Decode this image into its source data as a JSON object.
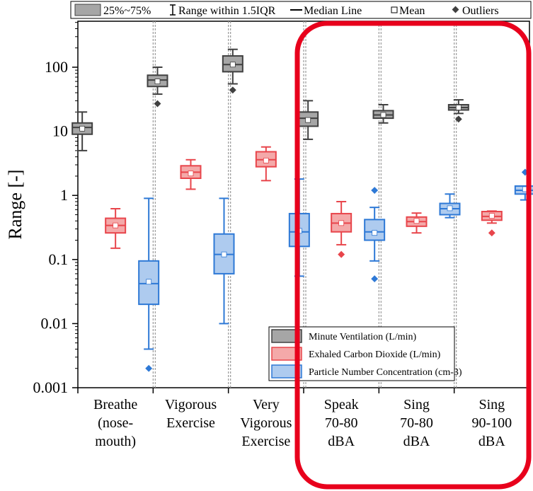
{
  "chart_data": {
    "type": "box",
    "yscale": "log",
    "ylabel": "Range [-]",
    "ylim": [
      0.001,
      500
    ],
    "y_ticks": [
      {
        "value": 100,
        "label": "100"
      },
      {
        "value": 10,
        "label": "10"
      },
      {
        "value": 1,
        "label": "1"
      },
      {
        "value": 0.1,
        "label": "0.1"
      },
      {
        "value": 0.01,
        "label": "0.01"
      },
      {
        "value": 0.001,
        "label": "0.001"
      }
    ],
    "categories": [
      {
        "id": "breathe",
        "lines": [
          "Breathe",
          "(nose-",
          "mouth)"
        ]
      },
      {
        "id": "vigorous",
        "lines": [
          "Vigorous",
          "Exercise"
        ]
      },
      {
        "id": "very-vigorous",
        "lines": [
          "Very",
          "Vigorous",
          "Exercise"
        ]
      },
      {
        "id": "speak",
        "lines": [
          "Speak",
          "70-80",
          "dBA"
        ]
      },
      {
        "id": "sing-70-80",
        "lines": [
          "Sing",
          "70-80",
          "dBA"
        ]
      },
      {
        "id": "sing-90-100",
        "lines": [
          "Sing",
          "90-100",
          "dBA"
        ]
      }
    ],
    "series": [
      {
        "name": "Minute Ventilation (L/min)",
        "fill": "#a6a6a6",
        "stroke": "#404040",
        "boxes": [
          {
            "min": 5,
            "q1": 9,
            "median": 11.5,
            "q3": 13.5,
            "max": 20,
            "mean": 11,
            "outliers": []
          },
          {
            "min": 38,
            "q1": 50,
            "median": 63,
            "q3": 75,
            "max": 100,
            "mean": 60,
            "outliers": [
              27
            ]
          },
          {
            "min": 55,
            "q1": 85,
            "median": 110,
            "q3": 150,
            "max": 190,
            "mean": 110,
            "outliers": [
              44
            ]
          },
          {
            "min": 7.5,
            "q1": 12,
            "median": 16,
            "q3": 20,
            "max": 30,
            "mean": 15,
            "outliers": []
          },
          {
            "min": 13.5,
            "q1": 16,
            "median": 18,
            "q3": 21,
            "max": 26,
            "mean": 18,
            "outliers": []
          },
          {
            "min": 19,
            "q1": 21.5,
            "median": 23.5,
            "q3": 26,
            "max": 31,
            "mean": 23.5,
            "outliers": [
              15.5
            ]
          }
        ]
      },
      {
        "name": "Exhaled Carbon Dioxide (L/min)",
        "fill": "#f4a9a9",
        "stroke": "#e8454b",
        "boxes": [
          {
            "min": 0.15,
            "q1": 0.26,
            "median": 0.34,
            "q3": 0.44,
            "max": 0.62,
            "mean": 0.34,
            "outliers": []
          },
          {
            "min": 1.25,
            "q1": 1.85,
            "median": 2.3,
            "q3": 2.9,
            "max": 3.6,
            "mean": 2.2,
            "outliers": []
          },
          {
            "min": 1.7,
            "q1": 2.8,
            "median": 3.6,
            "q3": 4.8,
            "max": 5.7,
            "mean": 3.5,
            "outliers": []
          },
          {
            "min": 0.17,
            "q1": 0.27,
            "median": 0.37,
            "q3": 0.52,
            "max": 0.8,
            "mean": 0.37,
            "outliers": [
              0.12
            ]
          },
          {
            "min": 0.26,
            "q1": 0.33,
            "median": 0.39,
            "q3": 0.46,
            "max": 0.53,
            "mean": 0.4,
            "outliers": []
          },
          {
            "min": 0.37,
            "q1": 0.41,
            "median": 0.47,
            "q3": 0.56,
            "max": 0.57,
            "mean": 0.48,
            "outliers": [
              0.26
            ]
          }
        ]
      },
      {
        "name": "Particle Number Concentration (cm-3)",
        "fill": "#aecbef",
        "stroke": "#2e79d6",
        "boxes": [
          {
            "min": 0.004,
            "q1": 0.02,
            "median": 0.042,
            "q3": 0.095,
            "max": 0.9,
            "mean": 0.045,
            "outliers": [
              0.002
            ]
          },
          {
            "min": 0.01,
            "q1": 0.06,
            "median": 0.12,
            "q3": 0.25,
            "max": 0.9,
            "mean": 0.12,
            "outliers": []
          },
          {
            "min": 0.055,
            "q1": 0.16,
            "median": 0.27,
            "q3": 0.52,
            "max": 1.8,
            "mean": 0.28,
            "outliers": []
          },
          {
            "min": 0.095,
            "q1": 0.2,
            "median": 0.27,
            "q3": 0.42,
            "max": 0.65,
            "mean": 0.26,
            "outliers": [
              1.2,
              0.05
            ]
          },
          {
            "min": 0.45,
            "q1": 0.5,
            "median": 0.62,
            "q3": 0.75,
            "max": 1.05,
            "mean": 0.63,
            "outliers": []
          },
          {
            "min": 0.85,
            "q1": 1.05,
            "median": 1.2,
            "q3": 1.4,
            "max": 1.4,
            "mean": 1.25,
            "outliers": [
              2.3
            ]
          }
        ]
      }
    ],
    "top_legend": [
      "25%~75%",
      "Range within 1.5IQR",
      "Median Line",
      "Mean",
      "Outliers"
    ],
    "highlight": {
      "color": "#e8001c",
      "from_category": "speak",
      "to_category": "sing-90-100"
    }
  }
}
